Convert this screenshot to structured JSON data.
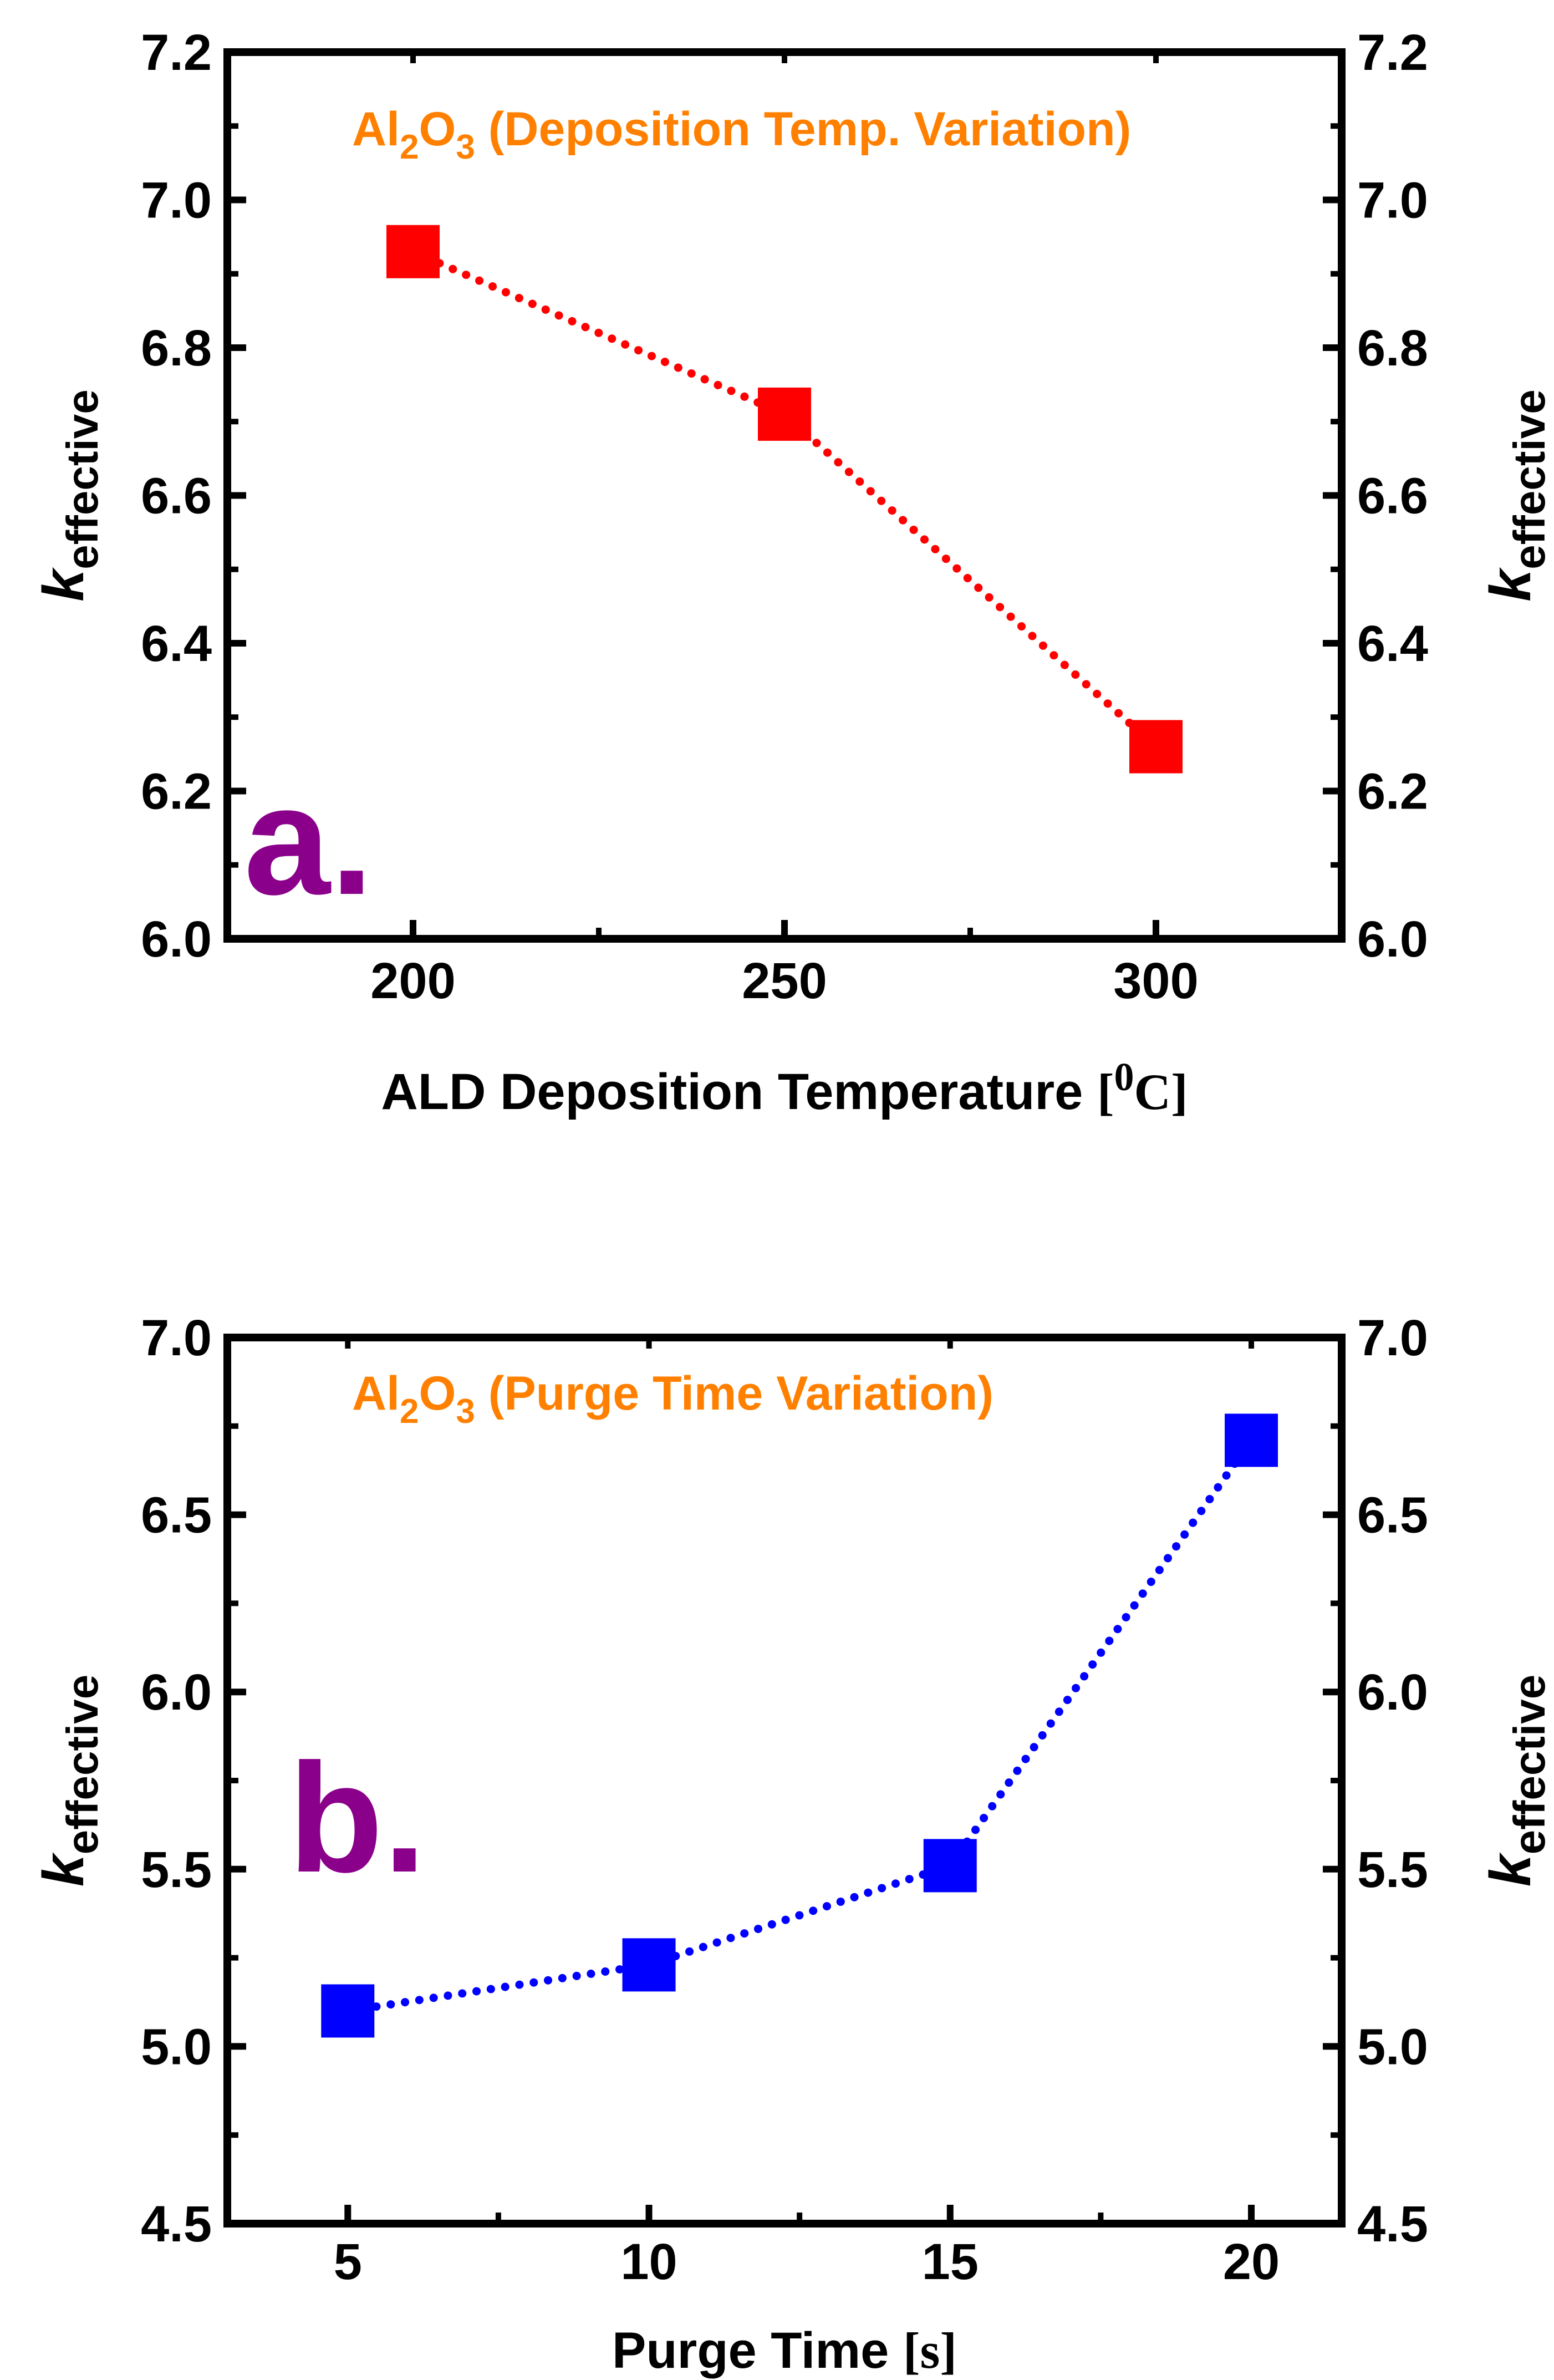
{
  "chart_data": [
    {
      "type": "line",
      "panel_label": "a.",
      "title": {
        "main": "Al",
        "sub1": "2",
        "mid": "O",
        "sub2": "3",
        "rest": " (Deposition Temp. Variation)"
      },
      "xlabel": {
        "main": "ALD Deposition Temperature ",
        "bracket_open": "[",
        "sup": "0",
        "unit": "C",
        "bracket_close": "]"
      },
      "ylabel": {
        "main": "k",
        "sub": "effective"
      },
      "x": [
        200,
        250,
        300
      ],
      "y": [
        6.93,
        6.71,
        6.26
      ],
      "xlim": [
        175,
        325
      ],
      "ylim": [
        6.0,
        7.2
      ],
      "xticks": [
        200,
        250,
        300
      ],
      "yticks": [
        "6.0",
        "6.2",
        "6.4",
        "6.6",
        "6.8",
        "7.0",
        "7.2"
      ],
      "color": "#ff0000",
      "title_color": "#ff8000",
      "label_color": "#8b008b",
      "marker": "square",
      "line_style": "dotted"
    },
    {
      "type": "line",
      "panel_label": "b.",
      "title": {
        "main": "Al",
        "sub1": "2",
        "mid": "O",
        "sub2": "3",
        "rest": " (Purge Time Variation)"
      },
      "xlabel": {
        "main": "Purge Time ",
        "bracket_open": "[",
        "sup": "",
        "unit": "s",
        "bracket_close": "]"
      },
      "ylabel": {
        "main": "k",
        "sub": "effective"
      },
      "x": [
        5,
        10,
        15,
        20
      ],
      "y": [
        5.1,
        5.23,
        5.51,
        6.71
      ],
      "xlim": [
        3,
        21.5
      ],
      "ylim": [
        4.5,
        7.0
      ],
      "xticks": [
        5,
        10,
        15,
        20
      ],
      "yticks": [
        "4.5",
        "5.0",
        "5.5",
        "6.0",
        "6.5",
        "7.0"
      ],
      "color": "#0000ff",
      "title_color": "#ff8000",
      "label_color": "#8b008b",
      "marker": "square",
      "line_style": "dotted"
    }
  ]
}
